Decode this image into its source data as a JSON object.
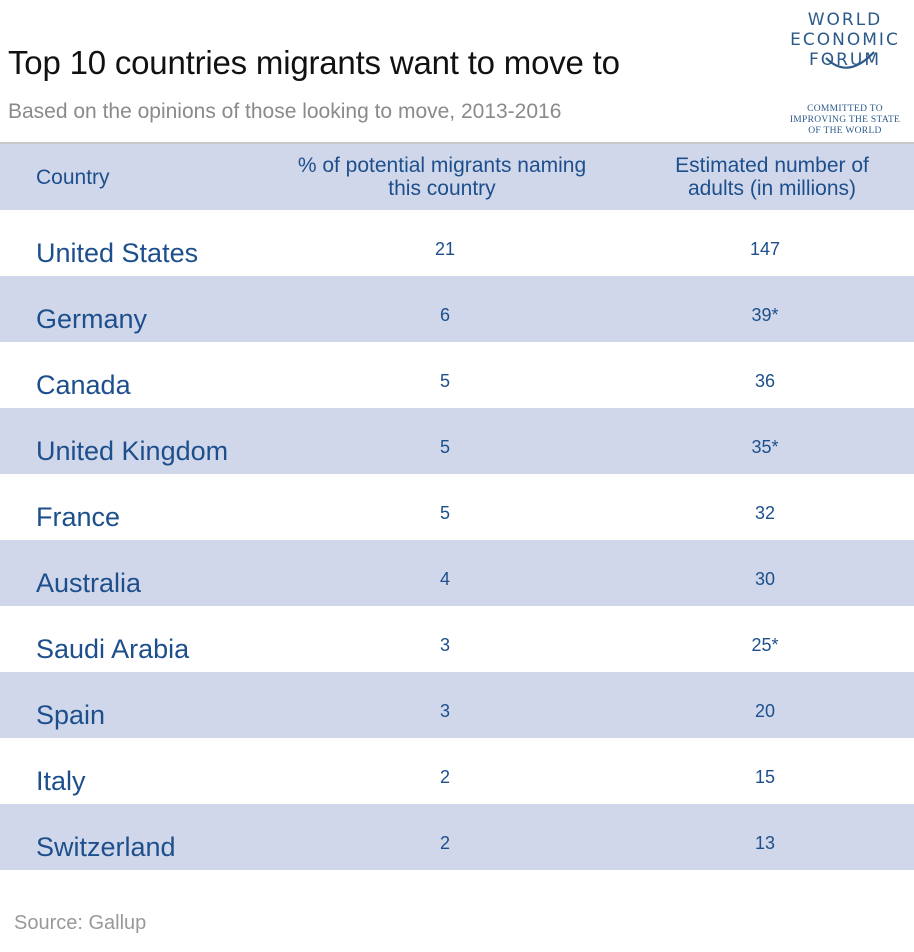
{
  "header": {
    "title": "Top 10 countries migrants want to move to",
    "subtitle": "Based on the opinions of those looking to move, 2013-2016"
  },
  "logo": {
    "line1": "WORLD",
    "line2": "ECONOMIC",
    "line3": "FORUM",
    "tagline": [
      "COMMITTED TO",
      "IMPROVING THE STATE",
      "OF THE WORLD"
    ],
    "color": "#2b5a8a"
  },
  "chart_data": {
    "type": "table",
    "columns": [
      "Country",
      "% of potential migrants naming this country",
      "Estimated number of adults (in millions)"
    ],
    "column_lines": [
      [
        "Country"
      ],
      [
        "% of potential migrants naming",
        "this country"
      ],
      [
        "Estimated number of",
        "adults (in millions)"
      ]
    ],
    "rows": [
      {
        "country": "United States",
        "pct": "21",
        "estimate": "147"
      },
      {
        "country": "Germany",
        "pct": "6",
        "estimate": "39*"
      },
      {
        "country": "Canada",
        "pct": "5",
        "estimate": "36"
      },
      {
        "country": "United Kingdom",
        "pct": "5",
        "estimate": "35*"
      },
      {
        "country": "France",
        "pct": "5",
        "estimate": "32"
      },
      {
        "country": "Australia",
        "pct": "4",
        "estimate": "30"
      },
      {
        "country": "Saudi Arabia",
        "pct": "3",
        "estimate": "25*"
      },
      {
        "country": "Spain",
        "pct": "3",
        "estimate": "20"
      },
      {
        "country": "Italy",
        "pct": "2",
        "estimate": "15"
      },
      {
        "country": "Switzerland",
        "pct": "2",
        "estimate": "13"
      }
    ]
  },
  "footer": {
    "source": "Source: Gallup"
  },
  "colors": {
    "accent_text": "#1d4f8c",
    "band": "#d1d7ea",
    "title": "#111111",
    "subtitle": "#8a8a8a"
  }
}
